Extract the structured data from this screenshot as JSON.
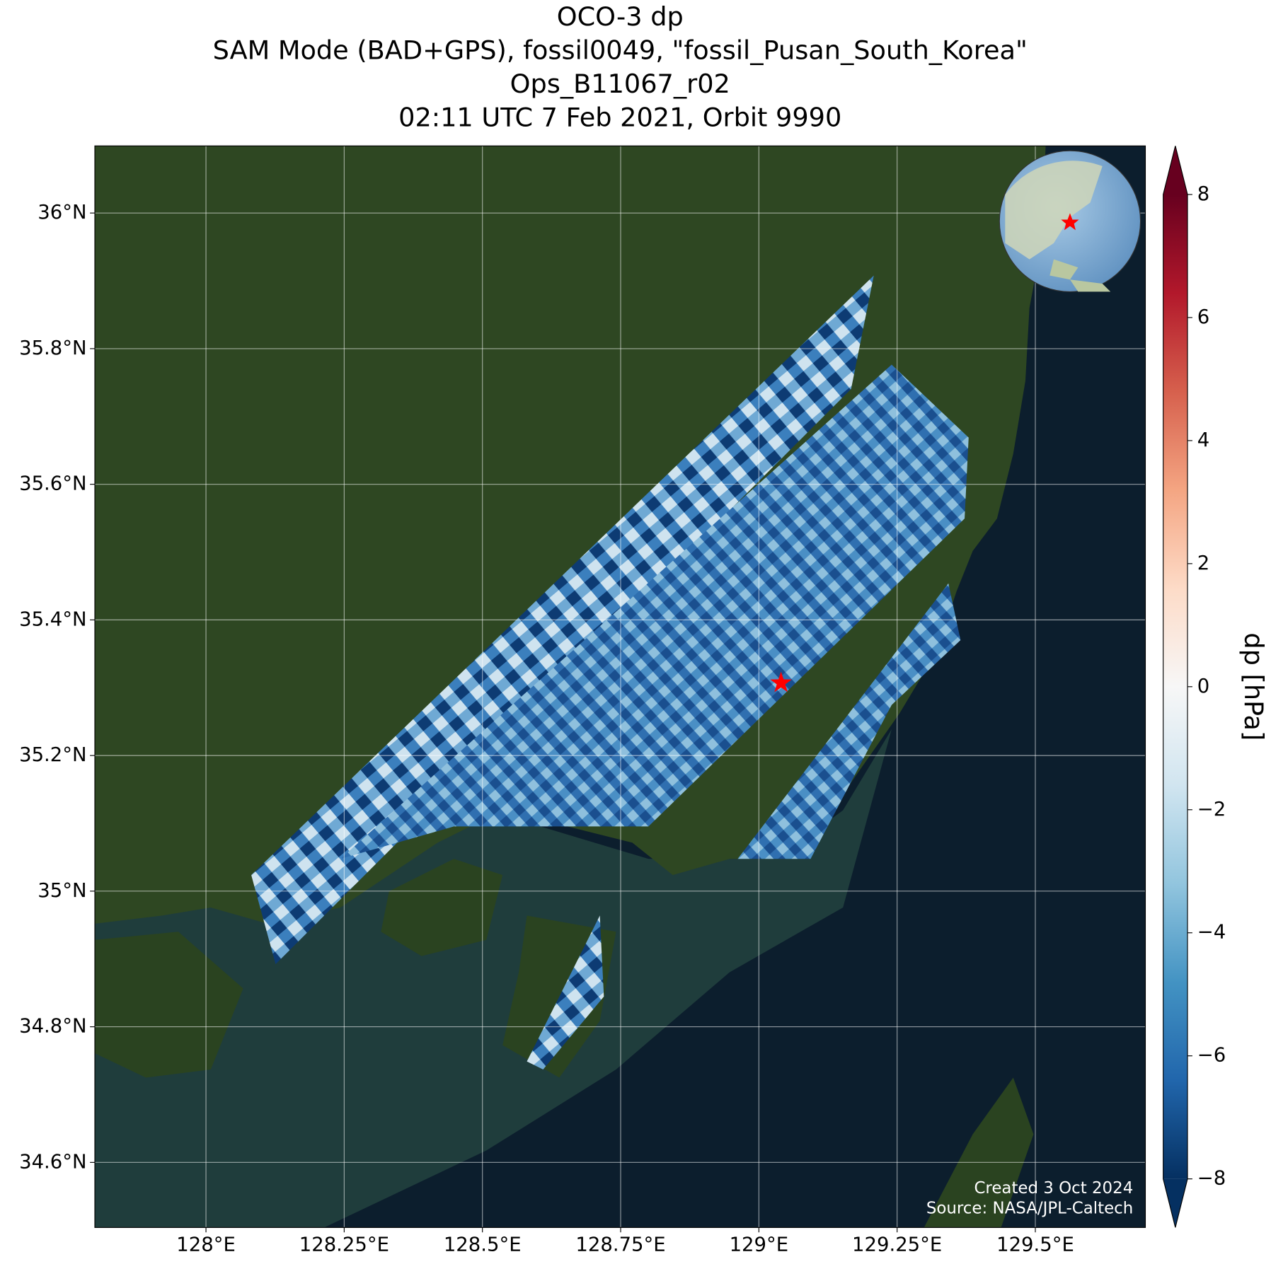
{
  "chart_data": {
    "type": "map",
    "title": [
      "OCO-3 dp",
      "SAM Mode (BAD+GPS), fossil0049, \"fossil_Pusan_South_Korea\"",
      "Ops_B11067_r02",
      "02:11 UTC 7 Feb 2021, Orbit 9990"
    ],
    "xlim": [
      127.799,
      129.699
    ],
    "ylim": [
      34.504,
      36.099
    ],
    "xticks": [
      {
        "value": 128,
        "label": "128°E"
      },
      {
        "value": 128.25,
        "label": "128.25°E"
      },
      {
        "value": 128.5,
        "label": "128.5°E"
      },
      {
        "value": 128.75,
        "label": "128.75°E"
      },
      {
        "value": 129,
        "label": "129°E"
      },
      {
        "value": 129.25,
        "label": "129.25°E"
      },
      {
        "value": 129.5,
        "label": "129.5°E"
      }
    ],
    "yticks": [
      {
        "value": 34.6,
        "label": "34.6°N"
      },
      {
        "value": 34.8,
        "label": "34.8°N"
      },
      {
        "value": 35,
        "label": "35°N"
      },
      {
        "value": 35.2,
        "label": "35.2°N"
      },
      {
        "value": 35.4,
        "label": "35.4°N"
      },
      {
        "value": 35.6,
        "label": "35.6°N"
      },
      {
        "value": 35.8,
        "label": "35.8°N"
      },
      {
        "value": 36,
        "label": "36°N"
      }
    ],
    "grid": true,
    "colorbar": {
      "label": "dp [hPa]",
      "lim": [
        -8,
        8
      ],
      "ticks": [
        {
          "value": -8,
          "label": "−8"
        },
        {
          "value": -6,
          "label": "−6"
        },
        {
          "value": -4,
          "label": "−4"
        },
        {
          "value": -2,
          "label": "−2"
        },
        0,
        2,
        4,
        6,
        8
      ],
      "colors": [
        "#053061",
        "#2166ac",
        "#4393c3",
        "#92c5de",
        "#d1e5f0",
        "#f7f7f7",
        "#fddbc7",
        "#f4a582",
        "#d6604d",
        "#b2182b",
        "#67001f"
      ]
    },
    "target": {
      "lon": 129.04,
      "lat": 35.307,
      "color": "#ff0000"
    },
    "credits": [
      "Created 3 Oct 2024",
      "Source: NASA/JPL-Caltech"
    ]
  }
}
